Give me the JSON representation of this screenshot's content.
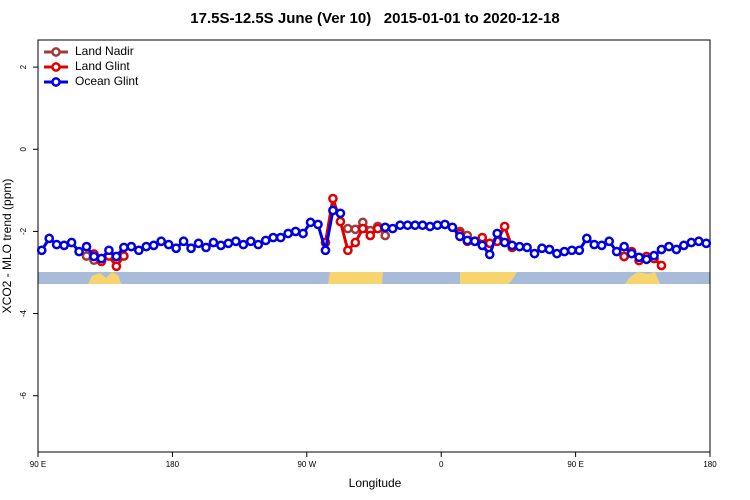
{
  "chart_data": {
    "type": "line",
    "title": "17.5S-12.5S June (Ver 10)   2015-01-01 to 2020-12-18",
    "x_label": "Longitude",
    "y_label": "XCO2 - MLO trend (ppm)",
    "xlim": [
      90,
      540
    ],
    "ylim": [
      -7.37,
      2.66
    ],
    "xticks": [
      {
        "value": 90,
        "label": "90 E"
      },
      180,
      {
        "value": 270,
        "label": "90 W"
      },
      {
        "value": 360,
        "label": "0"
      },
      {
        "value": 450,
        "label": "90 E"
      },
      {
        "value": 540,
        "label": "180"
      }
    ],
    "yticks": [
      2,
      0,
      -2,
      -4,
      -6
    ],
    "legend": "top-left",
    "x": [
      92.5,
      97.5,
      102.5,
      107.5,
      112.5,
      117.5,
      122.5,
      127.5,
      132.5,
      137.5,
      142.5,
      147.5,
      152.5,
      157.5,
      162.5,
      167.5,
      172.5,
      177.5,
      182.5,
      187.5,
      192.5,
      197.5,
      202.5,
      207.5,
      212.5,
      217.5,
      222.5,
      227.5,
      232.5,
      237.5,
      242.5,
      247.5,
      252.5,
      257.5,
      262.5,
      267.5,
      272.5,
      277.5,
      282.5,
      287.5,
      292.5,
      297.5,
      302.5,
      307.5,
      312.5,
      317.5,
      322.5,
      327.5,
      332.5,
      337.5,
      342.5,
      347.5,
      352.5,
      357.5,
      362.5,
      367.5,
      372.5,
      377.5,
      382.5,
      387.5,
      392.5,
      397.5,
      402.5,
      407.5,
      412.5,
      417.5,
      422.5,
      427.5,
      432.5,
      437.5,
      442.5,
      447.5,
      452.5,
      457.5,
      462.5,
      467.5,
      472.5,
      477.5,
      482.5,
      487.5,
      492.5,
      497.5,
      502.5,
      507.5,
      512.5,
      517.5,
      522.5,
      527.5,
      532.5,
      537.5
    ],
    "series": [
      {
        "name": "Land Nadir",
        "color": "#a33a3a",
        "values": [
          null,
          null,
          null,
          null,
          null,
          null,
          -2.6,
          -2.7,
          -2.7,
          null,
          null,
          null,
          null,
          null,
          null,
          null,
          null,
          null,
          null,
          null,
          null,
          null,
          null,
          null,
          null,
          null,
          null,
          null,
          null,
          null,
          null,
          null,
          null,
          null,
          null,
          null,
          null,
          null,
          null,
          null,
          null,
          -1.93,
          -1.95,
          -1.78,
          -1.98,
          -1.88,
          -2.1,
          null,
          null,
          null,
          null,
          null,
          null,
          null,
          null,
          null,
          -2.0,
          -2.1,
          null,
          null,
          null,
          null,
          null,
          null,
          null,
          null,
          null,
          null,
          null,
          null,
          null,
          null,
          null,
          null,
          null,
          null,
          null,
          null,
          -2.61,
          -2.5,
          null,
          null,
          null,
          null,
          null,
          null,
          null,
          null,
          null,
          null
        ]
      },
      {
        "name": "Land Glint",
        "color": "#e00000",
        "values": [
          null,
          null,
          null,
          null,
          null,
          null,
          null,
          -2.55,
          -2.73,
          -2.6,
          -2.85,
          -2.6,
          null,
          null,
          null,
          null,
          null,
          null,
          null,
          null,
          null,
          null,
          null,
          null,
          null,
          null,
          null,
          null,
          null,
          null,
          null,
          null,
          null,
          null,
          null,
          null,
          null,
          null,
          -2.27,
          -1.2,
          -1.76,
          -2.46,
          -2.27,
          -1.93,
          -2.1,
          -1.93,
          null,
          null,
          null,
          null,
          null,
          null,
          null,
          null,
          null,
          null,
          -2.05,
          -2.24,
          -2.24,
          -2.15,
          -2.29,
          -2.24,
          -1.88,
          -2.39,
          null,
          null,
          null,
          null,
          null,
          null,
          null,
          null,
          null,
          null,
          null,
          null,
          null,
          null,
          -2.61,
          -2.49,
          -2.71,
          -2.61,
          -2.66,
          -2.83,
          null,
          null,
          null,
          null,
          null,
          null
        ]
      },
      {
        "name": "Ocean Glint",
        "color": "#0000e0",
        "values": [
          -2.46,
          -2.17,
          -2.32,
          -2.34,
          -2.27,
          -2.49,
          -2.37,
          -2.61,
          -2.66,
          -2.46,
          -2.61,
          -2.39,
          -2.37,
          -2.46,
          -2.37,
          -2.34,
          -2.24,
          -2.32,
          -2.41,
          -2.24,
          -2.41,
          -2.29,
          -2.39,
          -2.27,
          -2.34,
          -2.29,
          -2.24,
          -2.32,
          -2.24,
          -2.32,
          -2.22,
          -2.15,
          -2.15,
          -2.05,
          -2.0,
          -2.05,
          -1.78,
          -1.83,
          -2.46,
          -1.49,
          -1.56,
          null,
          null,
          null,
          null,
          null,
          -1.9,
          -1.93,
          -1.85,
          -1.85,
          -1.85,
          -1.85,
          -1.88,
          -1.85,
          -1.83,
          -1.9,
          -2.12,
          -2.22,
          -2.24,
          -2.34,
          -2.56,
          -2.05,
          -2.27,
          -2.34,
          -2.37,
          -2.39,
          -2.54,
          -2.41,
          -2.44,
          -2.54,
          -2.49,
          -2.46,
          -2.46,
          -2.17,
          -2.32,
          -2.34,
          -2.24,
          -2.49,
          -2.37,
          -2.54,
          -2.63,
          -2.68,
          -2.59,
          -2.44,
          -2.37,
          -2.44,
          -2.34,
          -2.27,
          -2.24,
          -2.29
        ]
      }
    ]
  }
}
